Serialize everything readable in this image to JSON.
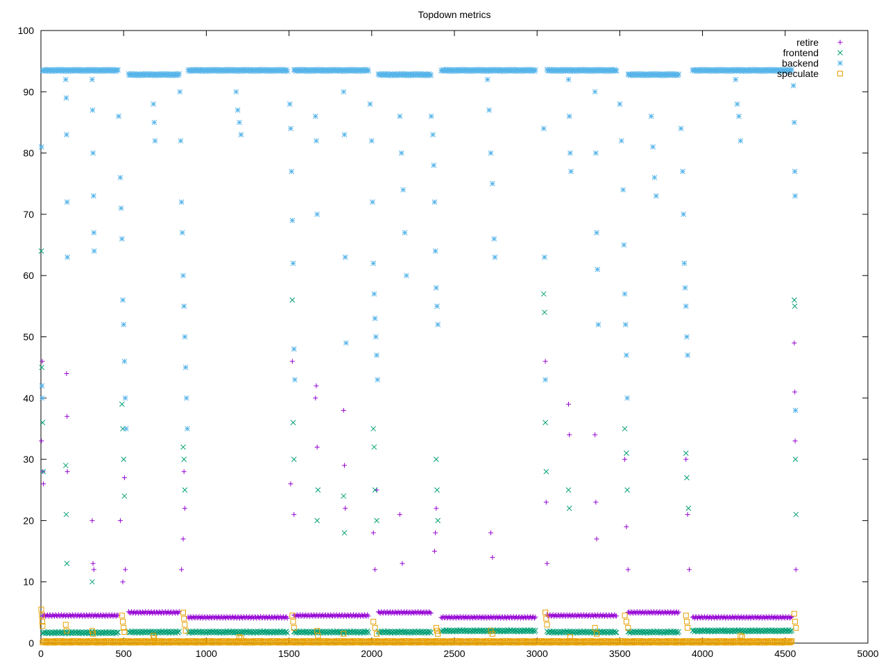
{
  "chart_data": {
    "type": "scatter",
    "title": "Topdown metrics",
    "xlabel": "",
    "ylabel": "",
    "xlim": [
      0,
      5000
    ],
    "ylim": [
      0,
      100
    ],
    "xticks": [
      0,
      500,
      1000,
      1500,
      2000,
      2500,
      3000,
      3500,
      4000,
      4500,
      5000
    ],
    "yticks": [
      0,
      10,
      20,
      30,
      40,
      50,
      60,
      70,
      80,
      90,
      100
    ],
    "grid": false,
    "legend_position": "top-right",
    "series": [
      {
        "name": "retire",
        "marker": "+",
        "color": "#9400d3",
        "baseline_segments": [
          {
            "x_start": 10,
            "x_end": 470,
            "y": 4.5
          },
          {
            "x_start": 530,
            "x_end": 840,
            "y": 5.0
          },
          {
            "x_start": 890,
            "x_end": 1490,
            "y": 4.2
          },
          {
            "x_start": 1530,
            "x_end": 1980,
            "y": 4.5
          },
          {
            "x_start": 2040,
            "x_end": 2360,
            "y": 5.0
          },
          {
            "x_start": 2420,
            "x_end": 2990,
            "y": 4.2
          },
          {
            "x_start": 3060,
            "x_end": 3480,
            "y": 4.5
          },
          {
            "x_start": 3550,
            "x_end": 3860,
            "y": 5.0
          },
          {
            "x_start": 3940,
            "x_end": 4540,
            "y": 4.2
          }
        ],
        "points": [
          [
            3,
            33
          ],
          [
            8,
            46
          ],
          [
            12,
            28
          ],
          [
            15,
            26
          ],
          [
            155,
            44
          ],
          [
            158,
            37
          ],
          [
            160,
            28
          ],
          [
            310,
            20
          ],
          [
            315,
            13
          ],
          [
            320,
            12
          ],
          [
            480,
            20
          ],
          [
            495,
            10
          ],
          [
            505,
            27
          ],
          [
            510,
            12
          ],
          [
            850,
            12
          ],
          [
            860,
            17
          ],
          [
            865,
            28
          ],
          [
            870,
            22
          ],
          [
            1510,
            26
          ],
          [
            1520,
            46
          ],
          [
            1530,
            21
          ],
          [
            1660,
            40
          ],
          [
            1665,
            42
          ],
          [
            1670,
            32
          ],
          [
            1830,
            38
          ],
          [
            1835,
            29
          ],
          [
            1840,
            22
          ],
          [
            2010,
            18
          ],
          [
            2020,
            12
          ],
          [
            2030,
            25
          ],
          [
            2170,
            21
          ],
          [
            2185,
            13
          ],
          [
            2380,
            15
          ],
          [
            2385,
            18
          ],
          [
            2390,
            22
          ],
          [
            2720,
            18
          ],
          [
            2730,
            14
          ],
          [
            3050,
            46
          ],
          [
            3055,
            23
          ],
          [
            3060,
            13
          ],
          [
            3190,
            39
          ],
          [
            3195,
            34
          ],
          [
            3350,
            34
          ],
          [
            3355,
            23
          ],
          [
            3360,
            17
          ],
          [
            3530,
            30
          ],
          [
            3540,
            19
          ],
          [
            3550,
            12
          ],
          [
            3900,
            30
          ],
          [
            3910,
            21
          ],
          [
            3920,
            12
          ],
          [
            4555,
            49
          ],
          [
            4558,
            41
          ],
          [
            4560,
            33
          ],
          [
            4565,
            12
          ]
        ]
      },
      {
        "name": "frontend",
        "marker": "x",
        "color": "#009e73",
        "baseline_segments": [
          {
            "x_start": 10,
            "x_end": 470,
            "y": 1.7
          },
          {
            "x_start": 530,
            "x_end": 840,
            "y": 1.8
          },
          {
            "x_start": 890,
            "x_end": 1490,
            "y": 1.8
          },
          {
            "x_start": 1530,
            "x_end": 1980,
            "y": 1.8
          },
          {
            "x_start": 2040,
            "x_end": 2360,
            "y": 1.8
          },
          {
            "x_start": 2420,
            "x_end": 2990,
            "y": 2.0
          },
          {
            "x_start": 3060,
            "x_end": 3480,
            "y": 1.8
          },
          {
            "x_start": 3550,
            "x_end": 3860,
            "y": 1.8
          },
          {
            "x_start": 3940,
            "x_end": 4540,
            "y": 2.0
          }
        ],
        "points": [
          [
            2,
            64
          ],
          [
            5,
            45
          ],
          [
            10,
            36
          ],
          [
            14,
            28
          ],
          [
            150,
            29
          ],
          [
            153,
            21
          ],
          [
            157,
            13
          ],
          [
            310,
            10
          ],
          [
            490,
            39
          ],
          [
            495,
            35
          ],
          [
            500,
            30
          ],
          [
            505,
            24
          ],
          [
            860,
            32
          ],
          [
            865,
            30
          ],
          [
            870,
            25
          ],
          [
            1520,
            56
          ],
          [
            1525,
            36
          ],
          [
            1530,
            30
          ],
          [
            1670,
            20
          ],
          [
            1675,
            25
          ],
          [
            1830,
            24
          ],
          [
            1835,
            18
          ],
          [
            2010,
            35
          ],
          [
            2015,
            32
          ],
          [
            2020,
            25
          ],
          [
            2030,
            20
          ],
          [
            2390,
            30
          ],
          [
            2395,
            25
          ],
          [
            2400,
            20
          ],
          [
            3040,
            57
          ],
          [
            3045,
            54
          ],
          [
            3050,
            36
          ],
          [
            3055,
            28
          ],
          [
            3190,
            25
          ],
          [
            3195,
            22
          ],
          [
            3530,
            35
          ],
          [
            3540,
            31
          ],
          [
            3545,
            25
          ],
          [
            3900,
            31
          ],
          [
            3905,
            27
          ],
          [
            3915,
            22
          ],
          [
            4555,
            56
          ],
          [
            4558,
            55
          ],
          [
            4562,
            30
          ],
          [
            4565,
            21
          ]
        ]
      },
      {
        "name": "backend",
        "marker": "*",
        "color": "#56b4e9",
        "baseline_segments": [
          {
            "x_start": 10,
            "x_end": 470,
            "y": 93.5
          },
          {
            "x_start": 530,
            "x_end": 840,
            "y": 92.8
          },
          {
            "x_start": 890,
            "x_end": 1490,
            "y": 93.5
          },
          {
            "x_start": 1530,
            "x_end": 1980,
            "y": 93.5
          },
          {
            "x_start": 2040,
            "x_end": 2360,
            "y": 92.8
          },
          {
            "x_start": 2420,
            "x_end": 2990,
            "y": 93.5
          },
          {
            "x_start": 3060,
            "x_end": 3480,
            "y": 93.5
          },
          {
            "x_start": 3550,
            "x_end": 3860,
            "y": 92.8
          },
          {
            "x_start": 3940,
            "x_end": 4540,
            "y": 93.5
          }
        ],
        "points": [
          [
            3,
            81
          ],
          [
            6,
            42
          ],
          [
            8,
            40
          ],
          [
            150,
            92
          ],
          [
            153,
            89
          ],
          [
            155,
            83
          ],
          [
            158,
            72
          ],
          [
            160,
            63
          ],
          [
            310,
            92
          ],
          [
            312,
            87
          ],
          [
            315,
            80
          ],
          [
            318,
            73
          ],
          [
            320,
            67
          ],
          [
            322,
            64
          ],
          [
            470,
            86
          ],
          [
            480,
            76
          ],
          [
            485,
            71
          ],
          [
            490,
            66
          ],
          [
            495,
            56
          ],
          [
            500,
            52
          ],
          [
            505,
            46
          ],
          [
            510,
            40
          ],
          [
            515,
            35
          ],
          [
            680,
            88
          ],
          [
            685,
            85
          ],
          [
            690,
            82
          ],
          [
            840,
            90
          ],
          [
            845,
            82
          ],
          [
            850,
            72
          ],
          [
            855,
            67
          ],
          [
            860,
            60
          ],
          [
            865,
            55
          ],
          [
            870,
            50
          ],
          [
            875,
            45
          ],
          [
            880,
            40
          ],
          [
            885,
            35
          ],
          [
            1180,
            90
          ],
          [
            1190,
            87
          ],
          [
            1200,
            85
          ],
          [
            1210,
            83
          ],
          [
            1505,
            88
          ],
          [
            1510,
            84
          ],
          [
            1515,
            77
          ],
          [
            1520,
            69
          ],
          [
            1525,
            62
          ],
          [
            1530,
            48
          ],
          [
            1535,
            43
          ],
          [
            1660,
            86
          ],
          [
            1665,
            82
          ],
          [
            1670,
            70
          ],
          [
            1830,
            90
          ],
          [
            1835,
            83
          ],
          [
            1840,
            63
          ],
          [
            1845,
            49
          ],
          [
            1990,
            88
          ],
          [
            2000,
            82
          ],
          [
            2005,
            72
          ],
          [
            2010,
            62
          ],
          [
            2015,
            57
          ],
          [
            2020,
            53
          ],
          [
            2025,
            50
          ],
          [
            2030,
            47
          ],
          [
            2035,
            43
          ],
          [
            2170,
            86
          ],
          [
            2180,
            80
          ],
          [
            2190,
            74
          ],
          [
            2200,
            67
          ],
          [
            2210,
            60
          ],
          [
            2360,
            86
          ],
          [
            2370,
            83
          ],
          [
            2375,
            78
          ],
          [
            2380,
            72
          ],
          [
            2385,
            64
          ],
          [
            2390,
            58
          ],
          [
            2395,
            55
          ],
          [
            2400,
            52
          ],
          [
            2700,
            92
          ],
          [
            2710,
            87
          ],
          [
            2720,
            80
          ],
          [
            2730,
            75
          ],
          [
            2740,
            66
          ],
          [
            2745,
            63
          ],
          [
            3040,
            84
          ],
          [
            3045,
            63
          ],
          [
            3050,
            43
          ],
          [
            3190,
            92
          ],
          [
            3195,
            86
          ],
          [
            3200,
            80
          ],
          [
            3205,
            77
          ],
          [
            3350,
            90
          ],
          [
            3355,
            80
          ],
          [
            3360,
            67
          ],
          [
            3365,
            61
          ],
          [
            3370,
            52
          ],
          [
            3500,
            88
          ],
          [
            3510,
            82
          ],
          [
            3520,
            74
          ],
          [
            3525,
            65
          ],
          [
            3530,
            57
          ],
          [
            3535,
            52
          ],
          [
            3540,
            47
          ],
          [
            3545,
            40
          ],
          [
            3690,
            86
          ],
          [
            3700,
            81
          ],
          [
            3710,
            76
          ],
          [
            3720,
            73
          ],
          [
            3870,
            84
          ],
          [
            3880,
            77
          ],
          [
            3885,
            70
          ],
          [
            3890,
            62
          ],
          [
            3895,
            58
          ],
          [
            3900,
            55
          ],
          [
            3905,
            50
          ],
          [
            3910,
            47
          ],
          [
            4200,
            92
          ],
          [
            4210,
            88
          ],
          [
            4220,
            86
          ],
          [
            4230,
            82
          ],
          [
            4550,
            91
          ],
          [
            4555,
            85
          ],
          [
            4558,
            77
          ],
          [
            4560,
            73
          ],
          [
            4562,
            38
          ]
        ]
      },
      {
        "name": "speculate",
        "marker": "square",
        "color": "#e69f00",
        "baseline_segments": [
          {
            "x_start": 10,
            "x_end": 4540,
            "y": 0.2
          }
        ],
        "points": [
          [
            2,
            5.5
          ],
          [
            5,
            4.5
          ],
          [
            8,
            3.5
          ],
          [
            10,
            2.8
          ],
          [
            150,
            3
          ],
          [
            155,
            2
          ],
          [
            310,
            2
          ],
          [
            315,
            1.5
          ],
          [
            490,
            4.5
          ],
          [
            495,
            3.5
          ],
          [
            500,
            2.5
          ],
          [
            505,
            1.8
          ],
          [
            680,
            1.2
          ],
          [
            685,
            0.8
          ],
          [
            860,
            5
          ],
          [
            865,
            4
          ],
          [
            870,
            3
          ],
          [
            875,
            2
          ],
          [
            1200,
            1
          ],
          [
            1210,
            0.8
          ],
          [
            1520,
            4.5
          ],
          [
            1525,
            3.5
          ],
          [
            1530,
            2.5
          ],
          [
            1670,
            2
          ],
          [
            1675,
            1.2
          ],
          [
            1830,
            1.5
          ],
          [
            2010,
            3.5
          ],
          [
            2020,
            2.5
          ],
          [
            2030,
            1.5
          ],
          [
            2390,
            2.5
          ],
          [
            2395,
            2
          ],
          [
            2400,
            1.5
          ],
          [
            2720,
            2
          ],
          [
            2730,
            1.5
          ],
          [
            3050,
            5
          ],
          [
            3055,
            4
          ],
          [
            3060,
            3
          ],
          [
            3200,
            1
          ],
          [
            3350,
            2.5
          ],
          [
            3360,
            1.5
          ],
          [
            3530,
            4.5
          ],
          [
            3540,
            3.5
          ],
          [
            3550,
            2.5
          ],
          [
            3900,
            4.5
          ],
          [
            3905,
            3.5
          ],
          [
            3910,
            2.5
          ],
          [
            4230,
            1.2
          ],
          [
            4240,
            1
          ],
          [
            4555,
            4.8
          ],
          [
            4560,
            3.5
          ],
          [
            4565,
            2.5
          ]
        ]
      }
    ]
  }
}
